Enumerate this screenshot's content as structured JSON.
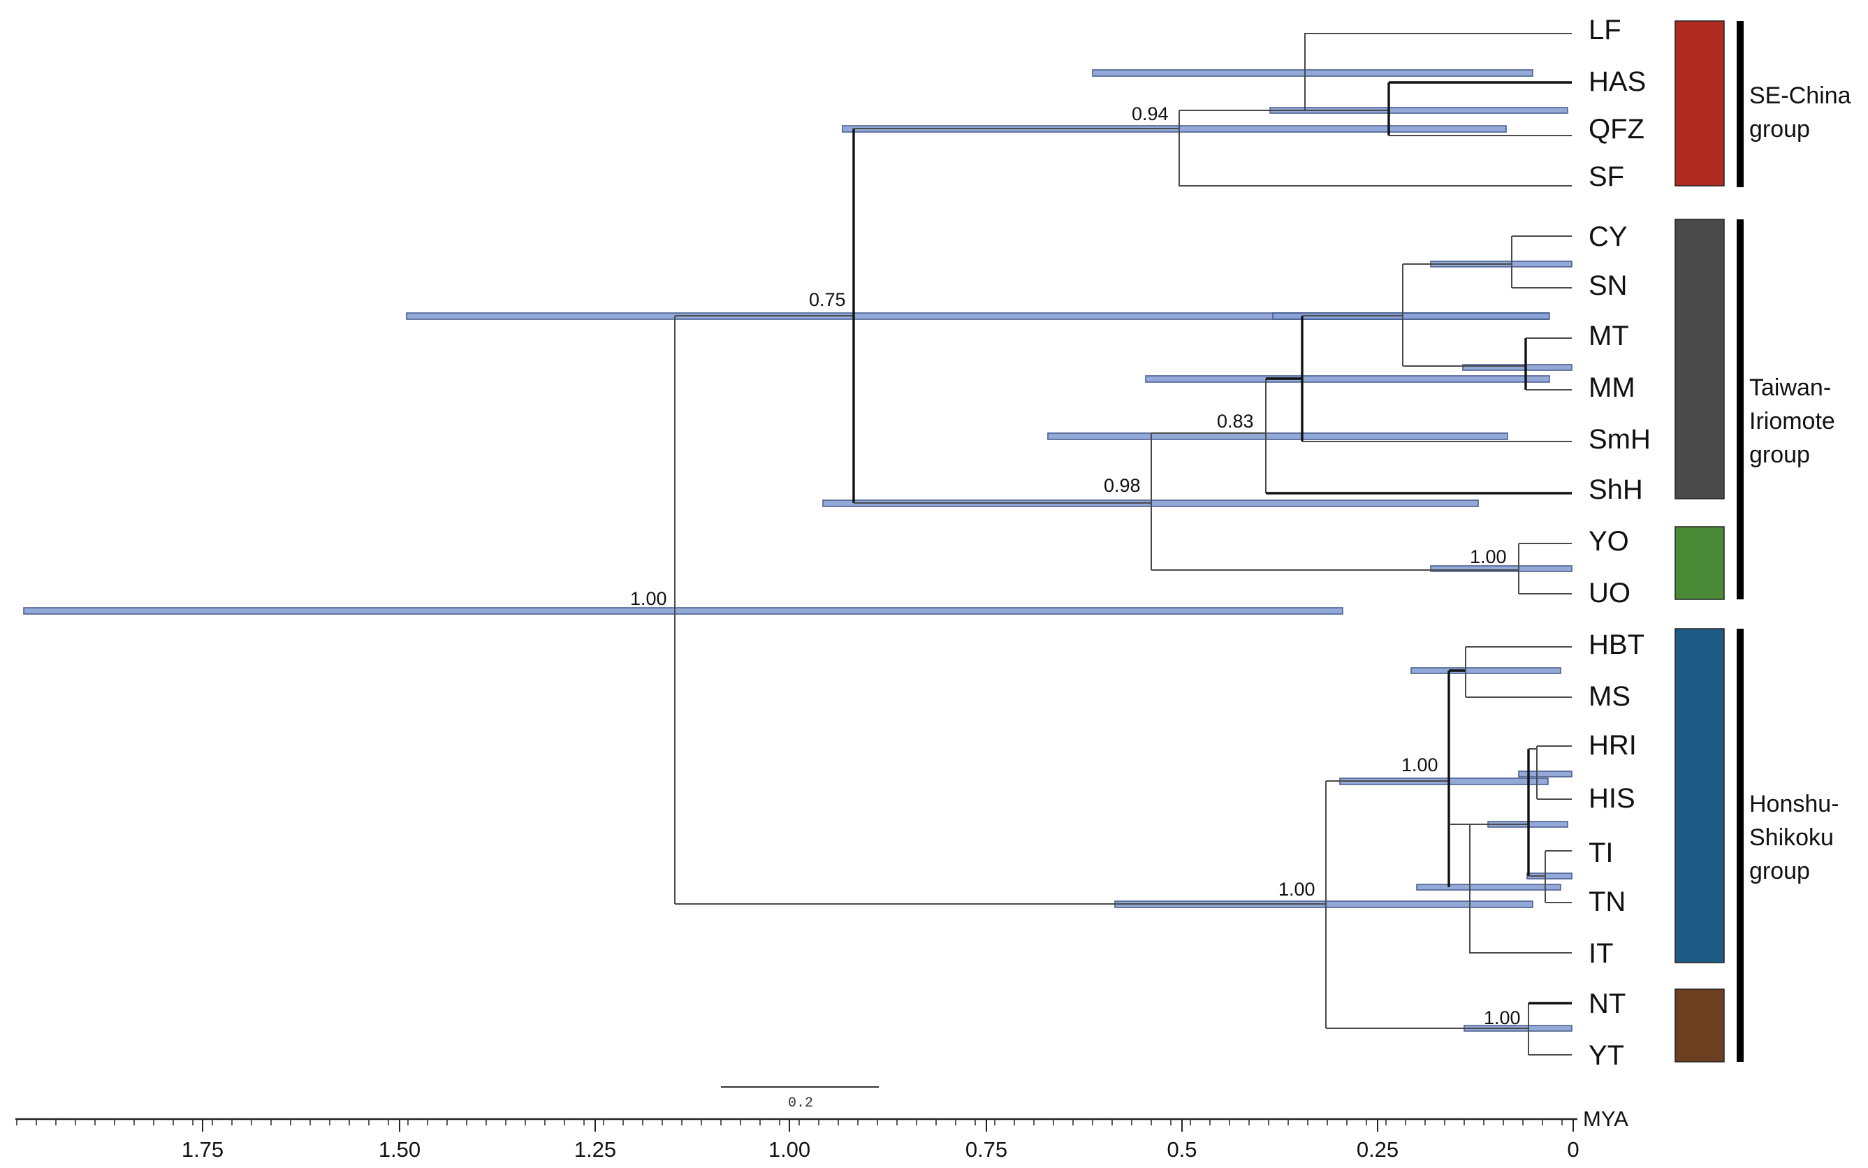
{
  "tips": [
    {
      "label": "LF"
    },
    {
      "label": "HAS"
    },
    {
      "label": "QFZ"
    },
    {
      "label": "SF"
    },
    {
      "label": "CY"
    },
    {
      "label": "SN"
    },
    {
      "label": "MT"
    },
    {
      "label": "MM"
    },
    {
      "label": "SmH"
    },
    {
      "label": "ShH"
    },
    {
      "label": "YO"
    },
    {
      "label": "UO"
    },
    {
      "label": "HBT"
    },
    {
      "label": "MS"
    },
    {
      "label": "HRI"
    },
    {
      "label": "HIS"
    },
    {
      "label": "TI"
    },
    {
      "label": "TN"
    },
    {
      "label": "IT"
    },
    {
      "label": "NT"
    },
    {
      "label": "YT"
    }
  ],
  "support": {
    "root": "1.00",
    "taiwan_china": "0.75",
    "se_china": "0.94",
    "taiwan_iriomote": "0.98",
    "taiwan": "0.83",
    "iriomote": "1.00",
    "japan": "1.00",
    "honshu": "1.00",
    "shikoku": "1.00"
  },
  "groups": [
    {
      "name": "SE-China group",
      "lines": [
        "SE-China",
        "group"
      ]
    },
    {
      "name": "Taiwan-Iriomote group",
      "lines": [
        "Taiwan-",
        "Iriomote",
        "group"
      ]
    },
    {
      "name": "Honshu-Shikoku group",
      "lines": [
        "Honshu-",
        "Shikoku",
        "group"
      ]
    }
  ],
  "clade_colors": [
    {
      "clade": "SE-China",
      "color": "#b02a22"
    },
    {
      "clade": "Taiwan",
      "color": "#4a4a4a"
    },
    {
      "clade": "Iriomote",
      "color": "#4a8a36"
    },
    {
      "clade": "Honshu",
      "color": "#1f5c85"
    },
    {
      "clade": "Shikoku",
      "color": "#6e3e20"
    }
  ],
  "axis": {
    "unit": "MYA",
    "ticks": [
      "1.75",
      "1.50",
      "1.25",
      "1.00",
      "0.75",
      "0.5",
      "0.25",
      "0"
    ]
  },
  "scale_bar": {
    "label": "0.2"
  }
}
